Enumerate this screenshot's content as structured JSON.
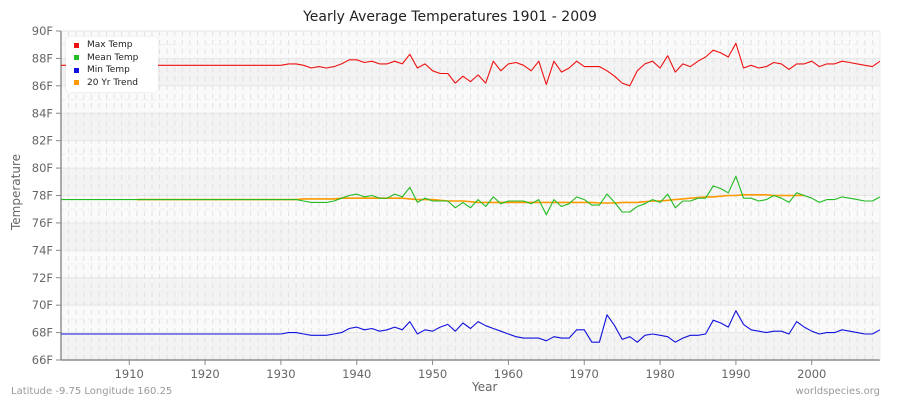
{
  "chart_data": {
    "type": "line",
    "title": "Yearly Average Temperatures 1901 - 2009",
    "xlabel": "Year",
    "ylabel": "Temperature",
    "xlim": [
      1901,
      2009
    ],
    "ylim": [
      66,
      90
    ],
    "x_ticks": [
      "1910",
      "1920",
      "1930",
      "1940",
      "1950",
      "1960",
      "1970",
      "1980",
      "1990",
      "2000"
    ],
    "y_ticks": [
      "66F",
      "68F",
      "70F",
      "72F",
      "74F",
      "76F",
      "78F",
      "80F",
      "82F",
      "84F",
      "86F",
      "88F",
      "90F"
    ],
    "grid": true,
    "legend_position": "top-left",
    "legend": [
      "Max Temp",
      "Mean Temp",
      "Min Temp",
      "20 Yr Trend"
    ],
    "colors": {
      "max": "#ee1111",
      "mean": "#22bb22",
      "min": "#1111dd",
      "trend": "#ff9900"
    },
    "x": [
      1901,
      1902,
      1903,
      1904,
      1905,
      1906,
      1907,
      1908,
      1909,
      1910,
      1911,
      1912,
      1913,
      1914,
      1915,
      1916,
      1917,
      1918,
      1919,
      1920,
      1921,
      1922,
      1923,
      1924,
      1925,
      1926,
      1927,
      1928,
      1929,
      1930,
      1931,
      1932,
      1933,
      1934,
      1935,
      1936,
      1937,
      1938,
      1939,
      1940,
      1941,
      1942,
      1943,
      1944,
      1945,
      1946,
      1947,
      1948,
      1949,
      1950,
      1951,
      1952,
      1953,
      1954,
      1955,
      1956,
      1957,
      1958,
      1959,
      1960,
      1961,
      1962,
      1963,
      1964,
      1965,
      1966,
      1967,
      1968,
      1969,
      1970,
      1971,
      1972,
      1973,
      1974,
      1975,
      1976,
      1977,
      1978,
      1979,
      1980,
      1981,
      1982,
      1983,
      1984,
      1985,
      1986,
      1987,
      1988,
      1989,
      1990,
      1991,
      1992,
      1993,
      1994,
      1995,
      1996,
      1997,
      1998,
      1999,
      2000,
      2001,
      2002,
      2003,
      2004,
      2005,
      2006,
      2007,
      2008,
      2009
    ],
    "series": [
      {
        "name": "Max Temp",
        "values": [
          87.5,
          87.5,
          87.5,
          87.5,
          87.5,
          87.5,
          87.5,
          87.5,
          87.5,
          87.5,
          87.5,
          87.5,
          87.5,
          87.5,
          87.5,
          87.5,
          87.5,
          87.5,
          87.5,
          87.5,
          87.5,
          87.5,
          87.5,
          87.5,
          87.5,
          87.5,
          87.5,
          87.5,
          87.5,
          87.5,
          87.6,
          87.6,
          87.5,
          87.3,
          87.4,
          87.3,
          87.4,
          87.6,
          87.9,
          87.9,
          87.7,
          87.8,
          87.6,
          87.6,
          87.8,
          87.6,
          88.3,
          87.3,
          87.6,
          87.1,
          86.9,
          86.9,
          86.2,
          86.7,
          86.3,
          86.8,
          86.2,
          87.8,
          87.1,
          87.6,
          87.7,
          87.5,
          87.1,
          87.8,
          86.1,
          87.8,
          87.0,
          87.3,
          87.8,
          87.4,
          87.4,
          87.4,
          87.1,
          86.7,
          86.2,
          86.0,
          87.1,
          87.6,
          87.8,
          87.3,
          88.2,
          87.0,
          87.6,
          87.4,
          87.8,
          88.1,
          88.6,
          88.4,
          88.1,
          89.1,
          87.3,
          87.5,
          87.3,
          87.4,
          87.7,
          87.6,
          87.2,
          87.6,
          87.6,
          87.8,
          87.4,
          87.6,
          87.6,
          87.8,
          87.7,
          87.6,
          87.5,
          87.4,
          87.8
        ]
      },
      {
        "name": "Mean Temp",
        "values": [
          77.7,
          77.7,
          77.7,
          77.7,
          77.7,
          77.7,
          77.7,
          77.7,
          77.7,
          77.7,
          77.7,
          77.7,
          77.7,
          77.7,
          77.7,
          77.7,
          77.7,
          77.7,
          77.7,
          77.7,
          77.7,
          77.7,
          77.7,
          77.7,
          77.7,
          77.7,
          77.7,
          77.7,
          77.7,
          77.7,
          77.7,
          77.7,
          77.6,
          77.5,
          77.5,
          77.5,
          77.6,
          77.8,
          78.0,
          78.1,
          77.9,
          78.0,
          77.8,
          77.8,
          78.1,
          77.9,
          78.6,
          77.5,
          77.8,
          77.6,
          77.6,
          77.6,
          77.1,
          77.5,
          77.1,
          77.7,
          77.2,
          77.9,
          77.4,
          77.6,
          77.6,
          77.6,
          77.4,
          77.7,
          76.6,
          77.7,
          77.2,
          77.4,
          77.9,
          77.7,
          77.3,
          77.3,
          78.1,
          77.5,
          76.8,
          76.8,
          77.2,
          77.4,
          77.7,
          77.5,
          78.1,
          77.1,
          77.6,
          77.6,
          77.8,
          77.8,
          78.7,
          78.5,
          78.2,
          79.4,
          77.8,
          77.8,
          77.6,
          77.7,
          78.0,
          77.8,
          77.5,
          78.2,
          78.0,
          77.8,
          77.5,
          77.7,
          77.7,
          77.9,
          77.8,
          77.7,
          77.6,
          77.6,
          77.9
        ]
      },
      {
        "name": "Min Temp",
        "values": [
          67.9,
          67.9,
          67.9,
          67.9,
          67.9,
          67.9,
          67.9,
          67.9,
          67.9,
          67.9,
          67.9,
          67.9,
          67.9,
          67.9,
          67.9,
          67.9,
          67.9,
          67.9,
          67.9,
          67.9,
          67.9,
          67.9,
          67.9,
          67.9,
          67.9,
          67.9,
          67.9,
          67.9,
          67.9,
          67.9,
          68.0,
          68.0,
          67.9,
          67.8,
          67.8,
          67.8,
          67.9,
          68.0,
          68.3,
          68.4,
          68.2,
          68.3,
          68.1,
          68.2,
          68.4,
          68.2,
          68.8,
          67.9,
          68.2,
          68.1,
          68.4,
          68.6,
          68.1,
          68.7,
          68.3,
          68.8,
          68.5,
          68.3,
          68.1,
          67.9,
          67.7,
          67.6,
          67.6,
          67.6,
          67.4,
          67.7,
          67.6,
          67.6,
          68.2,
          68.2,
          67.3,
          67.3,
          69.3,
          68.5,
          67.5,
          67.7,
          67.3,
          67.8,
          67.9,
          67.8,
          67.7,
          67.3,
          67.6,
          67.8,
          67.8,
          67.9,
          68.9,
          68.7,
          68.4,
          69.6,
          68.6,
          68.2,
          68.1,
          68.0,
          68.1,
          68.1,
          67.9,
          68.8,
          68.4,
          68.1,
          67.9,
          68.0,
          68.0,
          68.2,
          68.1,
          68.0,
          67.9,
          67.9,
          68.2
        ]
      },
      {
        "name": "20 Yr Trend",
        "x_range": [
          1911,
          1999
        ],
        "values": [
          77.7,
          77.7,
          77.7,
          77.7,
          77.7,
          77.7,
          77.7,
          77.7,
          77.7,
          77.7,
          77.7,
          77.7,
          77.7,
          77.7,
          77.7,
          77.7,
          77.7,
          77.7,
          77.7,
          77.7,
          77.7,
          77.7,
          77.75,
          77.75,
          77.75,
          77.75,
          77.75,
          77.8,
          77.8,
          77.8,
          77.8,
          77.8,
          77.8,
          77.8,
          77.8,
          77.8,
          77.75,
          77.7,
          77.7,
          77.7,
          77.65,
          77.6,
          77.6,
          77.6,
          77.55,
          77.5,
          77.5,
          77.5,
          77.5,
          77.5,
          77.5,
          77.5,
          77.5,
          77.5,
          77.5,
          77.5,
          77.5,
          77.5,
          77.5,
          77.5,
          77.5,
          77.45,
          77.45,
          77.45,
          77.5,
          77.5,
          77.5,
          77.55,
          77.6,
          77.6,
          77.65,
          77.7,
          77.75,
          77.8,
          77.85,
          77.9,
          77.9,
          77.95,
          78.0,
          78.0,
          78.05,
          78.05,
          78.05,
          78.05,
          78.0,
          78.0,
          78.0,
          78.0,
          78.0
        ]
      }
    ]
  },
  "header": {
    "title": "Yearly Average Temperatures 1901 - 2009"
  },
  "axes": {
    "xlabel": "Year",
    "ylabel": "Temperature"
  },
  "legend": [
    {
      "label": "Max Temp",
      "color": "#ee1111"
    },
    {
      "label": "Mean Temp",
      "color": "#22bb22"
    },
    {
      "label": "Min Temp",
      "color": "#1111dd"
    },
    {
      "label": "20 Yr Trend",
      "color": "#ff9900"
    }
  ],
  "footer": {
    "location": "Latitude -9.75 Longitude 160.25",
    "source": "worldspecies.org"
  }
}
